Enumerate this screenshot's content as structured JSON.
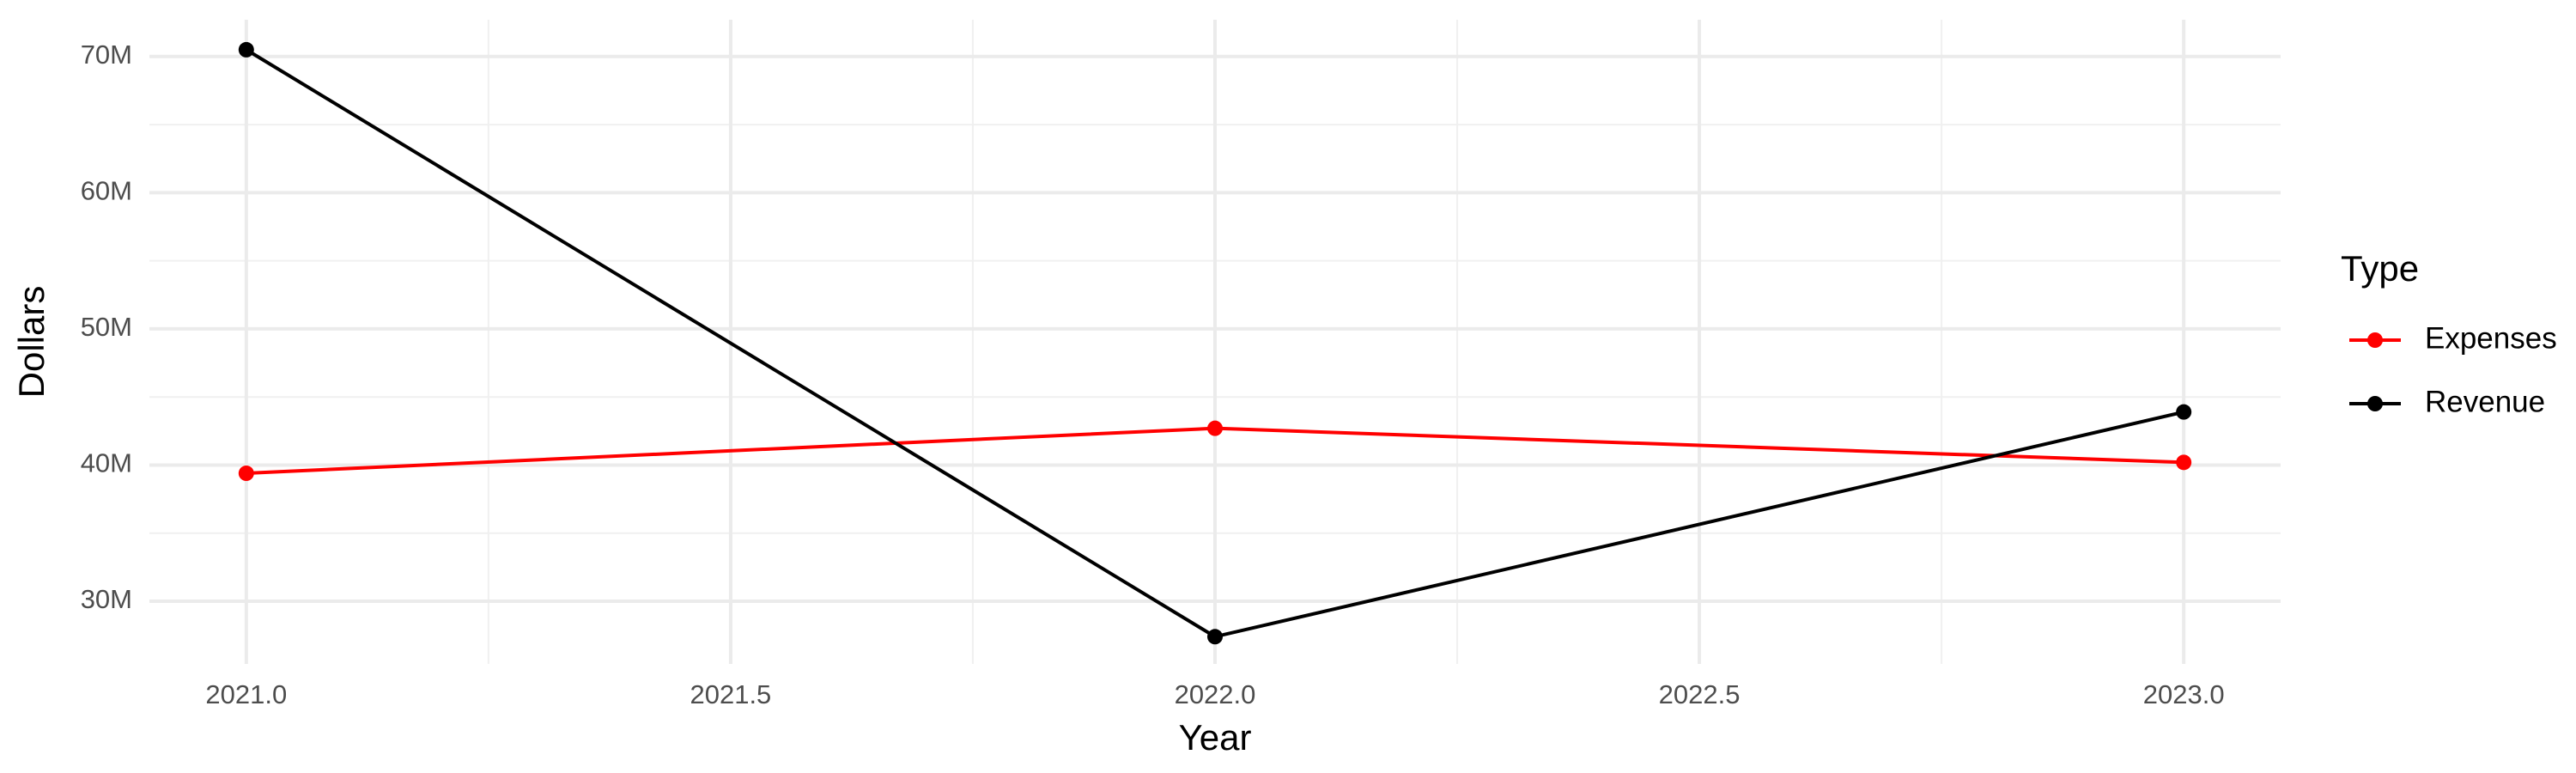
{
  "chart_data": {
    "type": "line",
    "x_label": "Year",
    "y_label": "Dollars",
    "legend_title": "Type",
    "x": [
      2021,
      2022,
      2023
    ],
    "series": [
      {
        "name": "Expenses",
        "color": "#ff0000",
        "values": [
          39400000,
          42700000,
          40200000
        ]
      },
      {
        "name": "Revenue",
        "color": "#000000",
        "values": [
          70500000,
          27400000,
          43900000
        ]
      }
    ],
    "xlim": [
      2020.9,
      2023.1
    ],
    "ylim": [
      25400000,
      72700000
    ],
    "xticks": [
      {
        "value": 2021,
        "label": "2021.0"
      },
      {
        "value": 2021.5,
        "label": "2021.5"
      },
      {
        "value": 2022,
        "label": "2022.0"
      },
      {
        "value": 2022.5,
        "label": "2022.5"
      },
      {
        "value": 2023,
        "label": "2023.0"
      }
    ],
    "yticks": [
      {
        "value": 30000000,
        "label": "30M"
      },
      {
        "value": 40000000,
        "label": "40M"
      },
      {
        "value": 50000000,
        "label": "50M"
      },
      {
        "value": 60000000,
        "label": "60M"
      },
      {
        "value": 70000000,
        "label": "70M"
      }
    ],
    "grid": true,
    "legend_position": "right"
  }
}
